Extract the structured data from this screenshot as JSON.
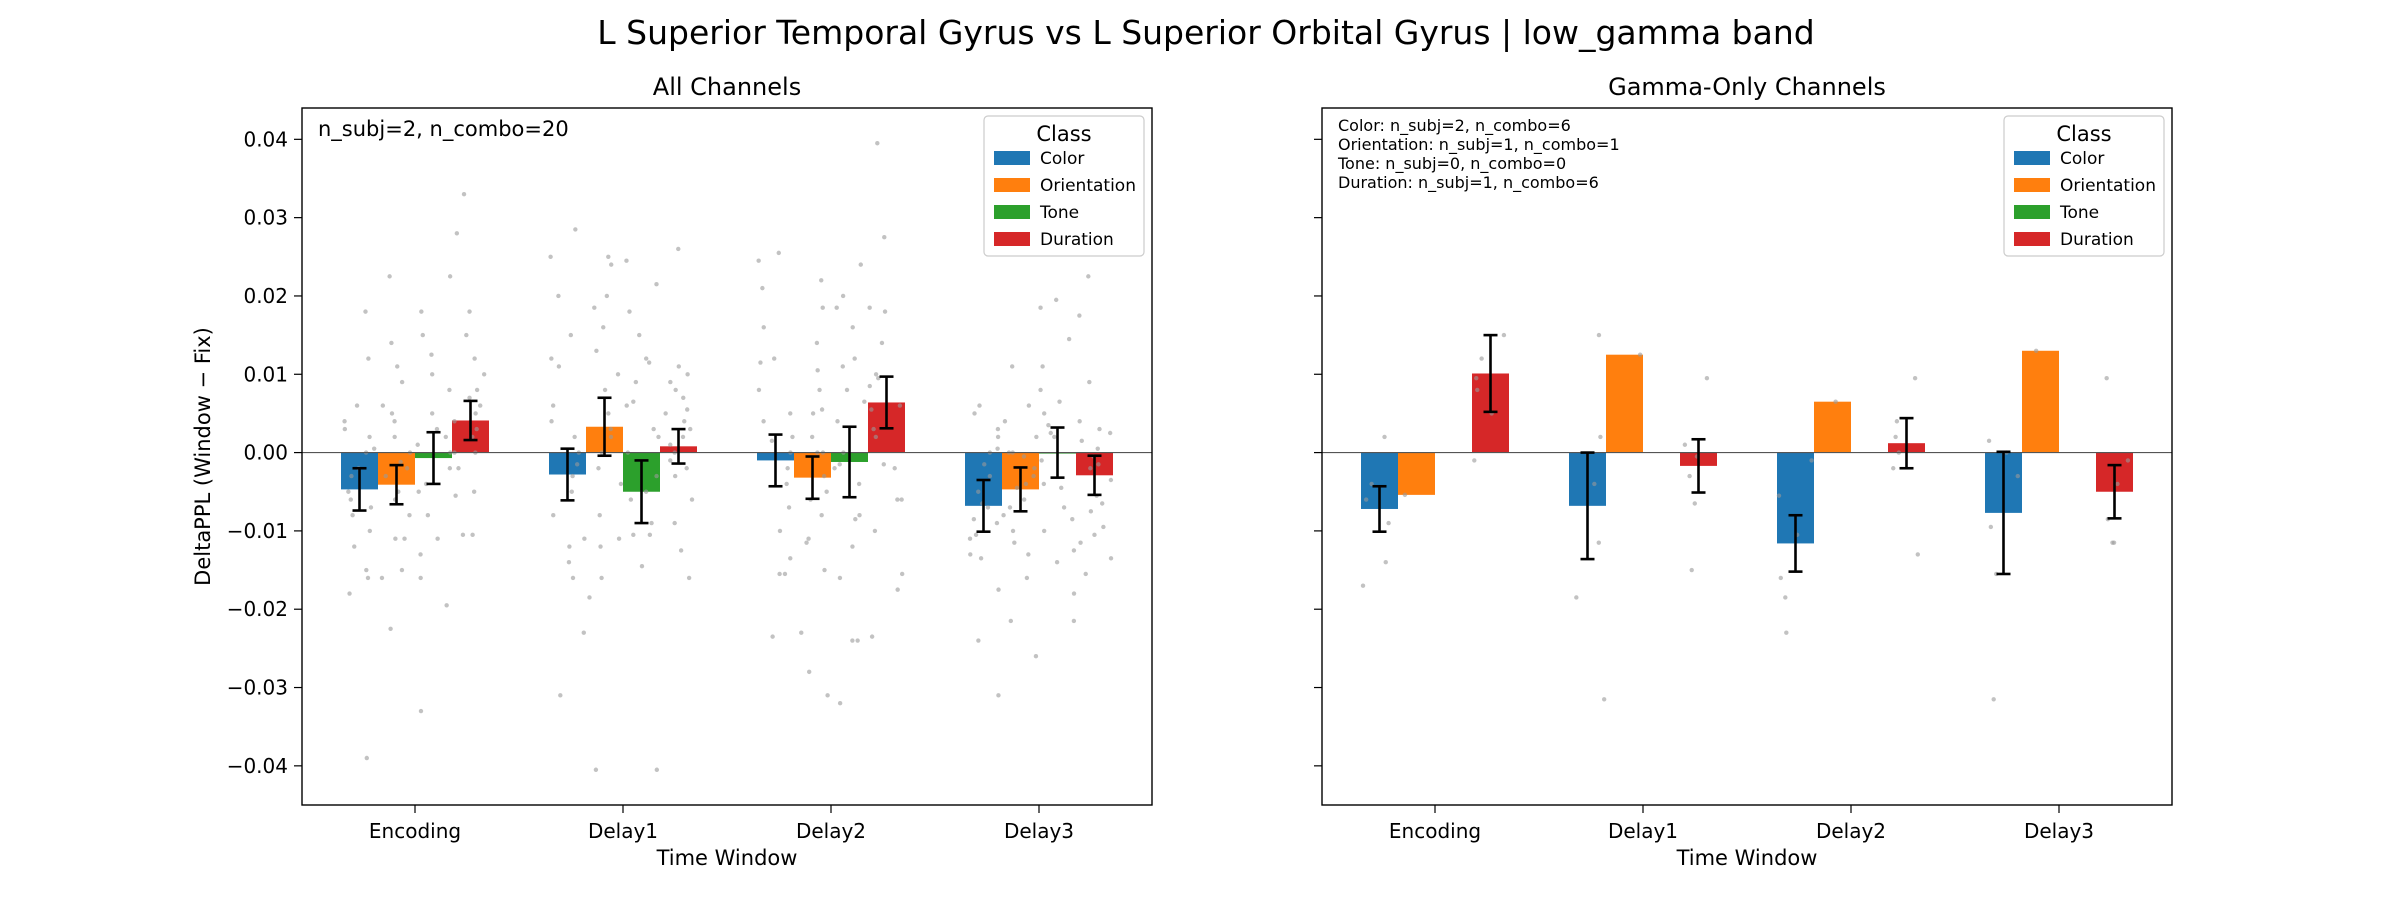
{
  "suptitle": "L Superior Temporal Gyrus vs L Superior Orbital Gyrus  |  low_gamma band",
  "colors": {
    "Color": "#1f77b4",
    "Orientation": "#ff7f0e",
    "Tone": "#2ca02c",
    "Duration": "#d62728"
  },
  "chart_data": [
    {
      "type": "bar",
      "title": "All Channels",
      "xlabel": "Time Window",
      "ylabel": "DeltaPPL (Window − Fix)",
      "categories": [
        "Encoding",
        "Delay1",
        "Delay2",
        "Delay3"
      ],
      "ylim": [
        -0.045,
        0.044
      ],
      "yticks": [
        0.04,
        0.03,
        0.02,
        0.01,
        0.0,
        -0.01,
        -0.02,
        -0.03,
        -0.04
      ],
      "ytick_labels": [
        "0.04",
        "0.03",
        "0.02",
        "0.01",
        "0.00",
        "−0.01",
        "−0.02",
        "−0.03",
        "−0.04"
      ],
      "annotations": [
        "n_subj=2, n_combo=20"
      ],
      "legend": {
        "title": "Class",
        "placement": "top-right",
        "entries": [
          "Color",
          "Orientation",
          "Tone",
          "Duration"
        ]
      },
      "series": [
        {
          "name": "Color",
          "values": [
            -0.0047,
            -0.0028,
            -0.001,
            -0.0068
          ],
          "err": [
            0.0027,
            0.0033,
            0.0033,
            0.0033
          ]
        },
        {
          "name": "Orientation",
          "values": [
            -0.0041,
            0.0033,
            -0.0032,
            -0.0047
          ],
          "err": [
            0.0025,
            0.0037,
            0.0027,
            0.0028
          ]
        },
        {
          "name": "Tone",
          "values": [
            -0.0007,
            -0.005,
            -0.0012,
            0.0
          ],
          "err": [
            0.0033,
            0.004,
            0.0045,
            0.0032
          ]
        },
        {
          "name": "Duration",
          "values": [
            0.0041,
            0.0008,
            0.0064,
            -0.0029
          ],
          "err": [
            0.0025,
            0.0022,
            0.0033,
            0.0025
          ]
        }
      ],
      "scatter_points": [
        {
          "series": "Color",
          "cat": "Encoding",
          "y": [
            -0.039,
            -0.018,
            -0.016,
            -0.012,
            -0.01,
            -0.008,
            -0.006,
            -0.005,
            -0.003,
            -0.002,
            0.0,
            0.002,
            0.004,
            0.006,
            0.012,
            0.018,
            -0.015,
            0.003,
            -0.007,
            0.0005
          ]
        },
        {
          "series": "Orientation",
          "cat": "Encoding",
          "y": [
            -0.0225,
            -0.016,
            -0.011,
            -0.011,
            -0.008,
            -0.006,
            -0.005,
            -0.003,
            -0.002,
            0.0,
            0.002,
            0.004,
            0.006,
            0.009,
            0.014,
            0.0225,
            -0.0012,
            0.011,
            -0.015,
            0.005
          ]
        },
        {
          "series": "Tone",
          "cat": "Encoding",
          "y": [
            -0.033,
            -0.0195,
            -0.016,
            -0.011,
            -0.008,
            -0.005,
            -0.002,
            0.0,
            0.002,
            0.005,
            0.01,
            0.015,
            0.018,
            0.0225,
            -0.004,
            0.008,
            0.0125,
            -0.013,
            0.001,
            0.003
          ]
        },
        {
          "series": "Duration",
          "cat": "Encoding",
          "y": [
            -0.0105,
            -0.0105,
            -0.005,
            -0.002,
            0.0,
            0.002,
            0.004,
            0.006,
            0.008,
            0.01,
            0.015,
            0.018,
            0.028,
            0.033,
            0.0,
            0.007,
            -0.0055,
            0.012,
            0.003,
            0.005
          ]
        },
        {
          "series": "Color",
          "cat": "Delay1",
          "y": [
            -0.031,
            -0.023,
            -0.016,
            -0.012,
            -0.011,
            -0.008,
            -0.005,
            -0.003,
            0.0,
            0.002,
            0.006,
            0.011,
            0.015,
            0.02,
            0.0285,
            0.025,
            -0.014,
            0.004,
            -0.0015,
            0.012
          ]
        },
        {
          "series": "Orientation",
          "cat": "Delay1",
          "y": [
            -0.0405,
            -0.0185,
            -0.016,
            -0.011,
            -0.008,
            -0.004,
            -0.002,
            0.0,
            0.002,
            0.005,
            0.008,
            0.013,
            0.016,
            0.02,
            0.024,
            0.025,
            0.003,
            -0.012,
            0.01,
            0.0185
          ]
        },
        {
          "series": "Tone",
          "cat": "Delay1",
          "y": [
            -0.0405,
            -0.0145,
            -0.0105,
            -0.009,
            -0.006,
            -0.003,
            0.0,
            0.003,
            0.006,
            0.009,
            0.012,
            0.015,
            0.018,
            0.0215,
            0.0245,
            -0.005,
            0.002,
            0.0115,
            -0.0105,
            0.0065
          ]
        },
        {
          "series": "Duration",
          "cat": "Delay1",
          "y": [
            -0.016,
            -0.009,
            -0.006,
            -0.003,
            -0.001,
            0.001,
            0.003,
            0.005,
            0.007,
            0.009,
            0.01,
            0.026,
            -0.0125,
            0.0,
            0.004,
            0.002,
            -0.002,
            0.008,
            0.0055,
            0.011
          ]
        },
        {
          "series": "Color",
          "cat": "Delay2",
          "y": [
            -0.0235,
            -0.0155,
            -0.0155,
            -0.01,
            -0.007,
            -0.004,
            -0.002,
            0.0,
            0.002,
            0.005,
            0.008,
            0.012,
            0.016,
            0.021,
            0.0245,
            0.0255,
            -0.0135,
            0.004,
            0.0015,
            0.0115
          ]
        },
        {
          "series": "Orientation",
          "cat": "Delay2",
          "y": [
            -0.031,
            -0.028,
            -0.023,
            -0.015,
            -0.011,
            -0.008,
            -0.005,
            -0.003,
            0.0,
            0.002,
            0.005,
            0.008,
            0.0185,
            0.022,
            0.0055,
            -0.006,
            0.0105,
            -0.0115,
            0.014,
            0.0
          ]
        },
        {
          "series": "Tone",
          "cat": "Delay2",
          "y": [
            -0.032,
            -0.024,
            -0.024,
            -0.016,
            -0.012,
            -0.008,
            -0.004,
            0.0,
            0.004,
            0.008,
            0.012,
            0.016,
            0.02,
            0.024,
            0.011,
            -0.002,
            0.0065,
            -0.0085,
            0.0185,
            -0.0015
          ]
        },
        {
          "series": "Duration",
          "cat": "Delay2",
          "y": [
            -0.0235,
            -0.0175,
            -0.0155,
            -0.01,
            -0.006,
            -0.002,
            0.002,
            0.006,
            0.01,
            0.014,
            0.018,
            0.0185,
            0.0275,
            0.0395,
            0.0055,
            -0.0015,
            0.003,
            0.0095,
            -0.006,
            0.0085
          ]
        },
        {
          "series": "Color",
          "cat": "Delay3",
          "y": [
            -0.031,
            -0.024,
            -0.0175,
            -0.013,
            -0.011,
            -0.009,
            -0.007,
            -0.005,
            -0.003,
            0.0,
            0.002,
            0.005,
            0.006,
            0.003,
            -0.0135,
            -0.0015,
            -0.0065,
            -0.0105,
            0.0005,
            -0.0085
          ]
        },
        {
          "series": "Orientation",
          "cat": "Delay3",
          "y": [
            -0.026,
            -0.0215,
            -0.016,
            -0.013,
            -0.01,
            -0.008,
            -0.006,
            -0.004,
            -0.002,
            0.0,
            0.002,
            0.004,
            0.006,
            0.011,
            -0.0005,
            -0.007,
            -0.0115,
            0.0,
            -0.003,
            -0.0045
          ]
        },
        {
          "series": "Tone",
          "cat": "Delay3",
          "y": [
            -0.0215,
            -0.018,
            -0.014,
            -0.01,
            -0.007,
            -0.004,
            -0.001,
            0.002,
            0.005,
            0.008,
            0.011,
            0.0145,
            0.0185,
            0.0195,
            -0.0085,
            -0.0125,
            0.0025,
            -0.0045,
            0.0065,
            0.0035
          ]
        },
        {
          "series": "Duration",
          "cat": "Delay3",
          "y": [
            -0.0155,
            -0.0135,
            -0.0115,
            -0.0095,
            -0.0075,
            -0.0055,
            -0.0035,
            -0.0015,
            0.0005,
            0.0025,
            0.004,
            0.009,
            0.0175,
            0.0225,
            -0.0005,
            -0.0065,
            0.0015,
            -0.0105,
            0.003,
            -0.002
          ]
        }
      ]
    },
    {
      "type": "bar",
      "title": "Gamma-Only Channels",
      "xlabel": "Time Window",
      "ylabel": "",
      "categories": [
        "Encoding",
        "Delay1",
        "Delay2",
        "Delay3"
      ],
      "ylim": [
        -0.045,
        0.044
      ],
      "yticks": [
        0.04,
        0.03,
        0.02,
        0.01,
        0.0,
        -0.01,
        -0.02,
        -0.03,
        -0.04
      ],
      "ytick_labels": [],
      "annotations": [
        "Color: n_subj=2, n_combo=6",
        "Orientation: n_subj=1, n_combo=1",
        "Tone: n_subj=0, n_combo=0",
        "Duration: n_subj=1, n_combo=6"
      ],
      "legend": {
        "title": "Class",
        "placement": "top-right",
        "entries": [
          "Color",
          "Orientation",
          "Tone",
          "Duration"
        ]
      },
      "series": [
        {
          "name": "Color",
          "values": [
            -0.0072,
            -0.0068,
            -0.0116,
            -0.0077
          ],
          "err": [
            0.0029,
            0.0068,
            0.0036,
            0.0078
          ]
        },
        {
          "name": "Orientation",
          "values": [
            -0.0054,
            0.0125,
            0.0065,
            0.013
          ],
          "err": [
            null,
            null,
            null,
            null
          ]
        },
        {
          "name": "Tone",
          "values": [
            null,
            null,
            null,
            null
          ],
          "err": [
            null,
            null,
            null,
            null
          ]
        },
        {
          "name": "Duration",
          "values": [
            0.0101,
            -0.0017,
            0.0012,
            -0.005
          ],
          "err": [
            0.0049,
            0.0034,
            0.0032,
            0.0034
          ]
        }
      ],
      "scatter_points": [
        {
          "series": "Color",
          "cat": "Encoding",
          "y": [
            -0.017,
            -0.014,
            -0.009,
            -0.006,
            0.002,
            -0.004
          ]
        },
        {
          "series": "Orientation",
          "cat": "Encoding",
          "y": [
            -0.0054
          ]
        },
        {
          "series": "Duration",
          "cat": "Encoding",
          "y": [
            -0.001,
            0.005,
            0.008,
            0.012,
            0.015,
            0.0095
          ]
        },
        {
          "series": "Color",
          "cat": "Delay1",
          "y": [
            -0.0315,
            -0.0185,
            -0.0115,
            -0.004,
            0.002,
            0.015
          ]
        },
        {
          "series": "Orientation",
          "cat": "Delay1",
          "y": [
            0.0125
          ]
        },
        {
          "series": "Duration",
          "cat": "Delay1",
          "y": [
            -0.015,
            -0.0065,
            -0.003,
            -0.0005,
            0.001,
            0.0095
          ]
        },
        {
          "series": "Color",
          "cat": "Delay2",
          "y": [
            -0.023,
            -0.0185,
            -0.016,
            -0.0105,
            -0.0055,
            -0.001
          ]
        },
        {
          "series": "Orientation",
          "cat": "Delay2",
          "y": [
            0.0065
          ]
        },
        {
          "series": "Duration",
          "cat": "Delay2",
          "y": [
            -0.013,
            -0.002,
            0.0,
            0.002,
            0.004,
            0.0095
          ]
        },
        {
          "series": "Color",
          "cat": "Delay3",
          "y": [
            -0.0315,
            -0.0155,
            -0.0095,
            -0.003,
            0.0015,
            0.0
          ]
        },
        {
          "series": "Orientation",
          "cat": "Delay3",
          "y": [
            0.013
          ]
        },
        {
          "series": "Duration",
          "cat": "Delay3",
          "y": [
            -0.0115,
            -0.0115,
            -0.0085,
            -0.004,
            -0.001,
            0.0095
          ]
        }
      ]
    }
  ]
}
